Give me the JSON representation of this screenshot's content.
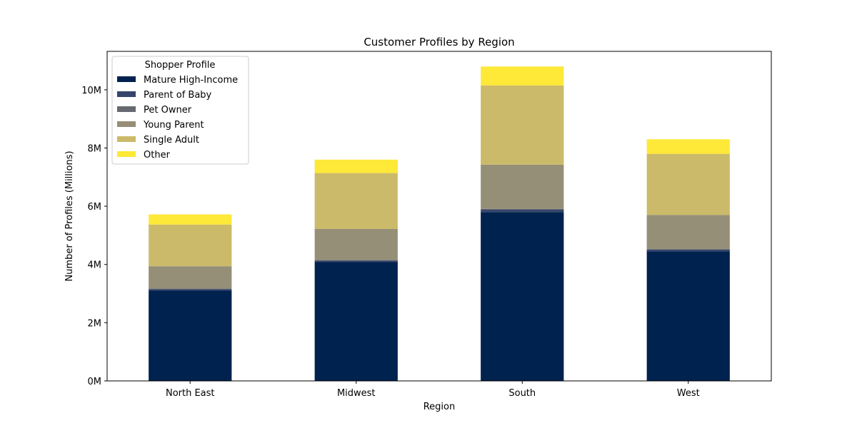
{
  "chart_data": {
    "type": "bar",
    "stacked": true,
    "title": "Customer Profiles by Region",
    "xlabel": "Region",
    "ylabel": "Number of Profiles (Millions)",
    "ylim": [
      0,
      11.32
    ],
    "yticks": [
      0,
      2,
      4,
      6,
      8,
      10
    ],
    "ytick_labels": [
      "0M",
      "2M",
      "4M",
      "6M",
      "8M",
      "10M"
    ],
    "categories": [
      "North East",
      "Midwest",
      "South",
      "West"
    ],
    "legend": {
      "title": "Shopper Profile",
      "position": "upper-left"
    },
    "grid": false,
    "series": [
      {
        "name": "Mature High-Income",
        "color": "#00224e",
        "values": [
          3.1,
          4.08,
          5.8,
          4.45
        ]
      },
      {
        "name": "Parent of Baby",
        "color": "#35456c",
        "values": [
          0.05,
          0.05,
          0.08,
          0.06
        ]
      },
      {
        "name": "Pet Owner",
        "color": "#666970",
        "values": [
          0.02,
          0.02,
          0.03,
          0.02
        ]
      },
      {
        "name": "Young Parent",
        "color": "#958f78",
        "values": [
          0.77,
          1.07,
          1.52,
          1.17
        ]
      },
      {
        "name": "Single Adult",
        "color": "#cbba69",
        "values": [
          1.43,
          1.92,
          2.72,
          2.1
        ]
      },
      {
        "name": "Other",
        "color": "#fee838",
        "values": [
          0.35,
          0.46,
          0.65,
          0.5
        ]
      }
    ]
  }
}
